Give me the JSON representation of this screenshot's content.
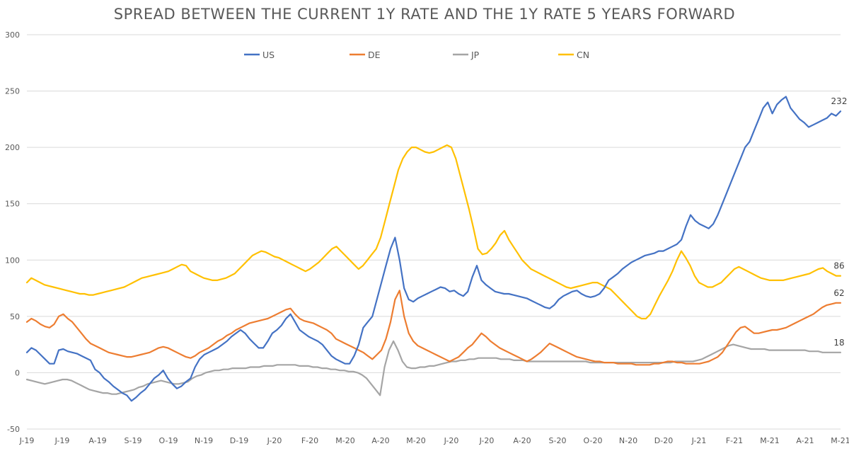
{
  "chart_data": {
    "type": "line",
    "title": "SPREAD BETWEEN THE CURRENT 1Y RATE AND THE 1Y RATE 5 YEARS FORWARD",
    "xlabel": "",
    "ylabel": "",
    "ylim": [
      -50,
      300
    ],
    "yticks": [
      -50,
      0,
      50,
      100,
      150,
      200,
      250,
      300
    ],
    "xtick_labels": [
      "J-19",
      "J-19",
      "A-19",
      "S-19",
      "O-19",
      "N-19",
      "D-19",
      "J-20",
      "F-20",
      "M-20",
      "A-20",
      "M-20",
      "J-20",
      "J-20",
      "A-20",
      "S-20",
      "O-20",
      "N-20",
      "D-20",
      "J-21",
      "F-21",
      "M-21",
      "A-21",
      "M-21"
    ],
    "grid": "horizontal",
    "legend_position": "top",
    "end_labels": {
      "US": "232",
      "DE": "62",
      "JP": "18",
      "CN": "86"
    },
    "series": [
      {
        "name": "US",
        "color": "#4472C4",
        "values": [
          18,
          22,
          20,
          16,
          12,
          8,
          8,
          20,
          21,
          19,
          18,
          17,
          15,
          13,
          11,
          3,
          0,
          -5,
          -8,
          -12,
          -15,
          -18,
          -20,
          -25,
          -22,
          -18,
          -15,
          -10,
          -5,
          -2,
          2,
          -5,
          -10,
          -14,
          -12,
          -8,
          -5,
          5,
          12,
          16,
          18,
          20,
          22,
          25,
          28,
          32,
          35,
          38,
          35,
          30,
          26,
          22,
          22,
          28,
          35,
          38,
          42,
          48,
          52,
          45,
          38,
          35,
          32,
          30,
          28,
          25,
          20,
          15,
          12,
          10,
          8,
          8,
          15,
          25,
          40,
          45,
          50,
          65,
          80,
          95,
          110,
          120,
          100,
          75,
          65,
          63,
          66,
          68,
          70,
          72,
          74,
          76,
          75,
          72,
          73,
          70,
          68,
          72,
          85,
          95,
          82,
          78,
          75,
          72,
          71,
          70,
          70,
          69,
          68,
          67,
          66,
          64,
          62,
          60,
          58,
          57,
          60,
          65,
          68,
          70,
          72,
          73,
          70,
          68,
          67,
          68,
          70,
          75,
          82,
          85,
          88,
          92,
          95,
          98,
          100,
          102,
          104,
          105,
          106,
          108,
          108,
          110,
          112,
          114,
          118,
          130,
          140,
          135,
          132,
          130,
          128,
          132,
          140,
          150,
          160,
          170,
          180,
          190,
          200,
          205,
          215,
          225,
          235,
          240,
          230,
          238,
          242,
          245,
          235,
          230,
          225,
          222,
          218,
          220,
          222,
          224,
          226,
          230,
          228,
          232
        ]
      },
      {
        "name": "DE",
        "color": "#ED7D31",
        "values": [
          45,
          48,
          46,
          43,
          41,
          40,
          43,
          50,
          52,
          48,
          45,
          40,
          35,
          30,
          26,
          24,
          22,
          20,
          18,
          17,
          16,
          15,
          14,
          14,
          15,
          16,
          17,
          18,
          20,
          22,
          23,
          22,
          20,
          18,
          16,
          14,
          13,
          15,
          18,
          20,
          22,
          25,
          28,
          30,
          33,
          35,
          38,
          40,
          42,
          44,
          45,
          46,
          47,
          48,
          50,
          52,
          54,
          56,
          57,
          52,
          48,
          46,
          45,
          44,
          42,
          40,
          38,
          35,
          30,
          28,
          26,
          24,
          22,
          20,
          18,
          15,
          12,
          16,
          20,
          30,
          45,
          65,
          73,
          50,
          35,
          28,
          24,
          22,
          20,
          18,
          16,
          14,
          12,
          10,
          12,
          14,
          18,
          22,
          25,
          30,
          35,
          32,
          28,
          25,
          22,
          20,
          18,
          16,
          14,
          12,
          10,
          12,
          15,
          18,
          22,
          26,
          24,
          22,
          20,
          18,
          16,
          14,
          13,
          12,
          11,
          10,
          10,
          9,
          9,
          9,
          8,
          8,
          8,
          8,
          7,
          7,
          7,
          7,
          8,
          8,
          9,
          10,
          10,
          9,
          9,
          8,
          8,
          8,
          8,
          9,
          10,
          12,
          14,
          18,
          24,
          30,
          36,
          40,
          41,
          38,
          35,
          35,
          36,
          37,
          38,
          38,
          39,
          40,
          42,
          44,
          46,
          48,
          50,
          52,
          55,
          58,
          60,
          61,
          62,
          62
        ]
      },
      {
        "name": "JP",
        "color": "#A5A5A5",
        "values": [
          -6,
          -7,
          -8,
          -9,
          -10,
          -9,
          -8,
          -7,
          -6,
          -6,
          -7,
          -9,
          -11,
          -13,
          -15,
          -16,
          -17,
          -18,
          -18,
          -19,
          -19,
          -18,
          -17,
          -16,
          -15,
          -13,
          -12,
          -10,
          -9,
          -8,
          -7,
          -8,
          -9,
          -10,
          -10,
          -9,
          -8,
          -5,
          -3,
          -2,
          0,
          1,
          2,
          2,
          3,
          3,
          4,
          4,
          4,
          4,
          5,
          5,
          5,
          6,
          6,
          6,
          7,
          7,
          7,
          7,
          7,
          6,
          6,
          6,
          5,
          5,
          4,
          4,
          3,
          3,
          2,
          2,
          1,
          1,
          0,
          -2,
          -5,
          -10,
          -15,
          -20,
          5,
          20,
          28,
          20,
          10,
          5,
          4,
          4,
          5,
          5,
          6,
          6,
          7,
          8,
          9,
          10,
          10,
          11,
          11,
          12,
          12,
          13,
          13,
          13,
          13,
          13,
          12,
          12,
          12,
          11,
          11,
          11,
          10,
          10,
          10,
          10,
          10,
          10,
          10,
          10,
          10,
          10,
          10,
          10,
          10,
          10,
          9,
          9,
          9,
          9,
          9,
          9,
          9,
          9,
          9,
          9,
          9,
          9,
          9,
          9,
          9,
          9,
          9,
          9,
          9,
          10,
          10,
          10,
          10,
          10,
          11,
          12,
          14,
          16,
          18,
          20,
          22,
          24,
          25,
          24,
          23,
          22,
          21,
          21,
          21,
          21,
          20,
          20,
          20,
          20,
          20,
          20,
          20,
          20,
          20,
          19,
          19,
          19,
          18,
          18,
          18,
          18,
          18
        ]
      },
      {
        "name": "CN",
        "color": "#FFC000",
        "values": [
          80,
          84,
          82,
          80,
          78,
          77,
          76,
          75,
          74,
          73,
          72,
          71,
          70,
          70,
          69,
          69,
          70,
          71,
          72,
          73,
          74,
          75,
          76,
          78,
          80,
          82,
          84,
          85,
          86,
          87,
          88,
          89,
          90,
          92,
          94,
          96,
          95,
          90,
          88,
          86,
          84,
          83,
          82,
          82,
          83,
          84,
          86,
          88,
          92,
          96,
          100,
          104,
          106,
          108,
          107,
          105,
          103,
          102,
          100,
          98,
          96,
          94,
          92,
          90,
          92,
          95,
          98,
          102,
          106,
          110,
          112,
          108,
          104,
          100,
          96,
          92,
          95,
          100,
          105,
          110,
          120,
          135,
          150,
          165,
          180,
          190,
          196,
          200,
          200,
          198,
          196,
          195,
          196,
          198,
          200,
          202,
          200,
          190,
          175,
          160,
          145,
          128,
          110,
          105,
          106,
          110,
          115,
          122,
          126,
          118,
          112,
          106,
          100,
          96,
          92,
          90,
          88,
          86,
          84,
          82,
          80,
          78,
          76,
          75,
          76,
          77,
          78,
          79,
          80,
          80,
          78,
          76,
          74,
          70,
          66,
          62,
          58,
          54,
          50,
          48,
          48,
          52,
          60,
          68,
          75,
          82,
          90,
          100,
          108,
          102,
          95,
          86,
          80,
          78,
          76,
          76,
          78,
          80,
          84,
          88,
          92,
          94,
          92,
          90,
          88,
          86,
          84,
          83,
          82,
          82,
          82,
          82,
          83,
          84,
          85,
          86,
          87,
          88,
          90,
          92,
          93,
          90,
          88,
          86,
          86
        ]
      }
    ]
  }
}
